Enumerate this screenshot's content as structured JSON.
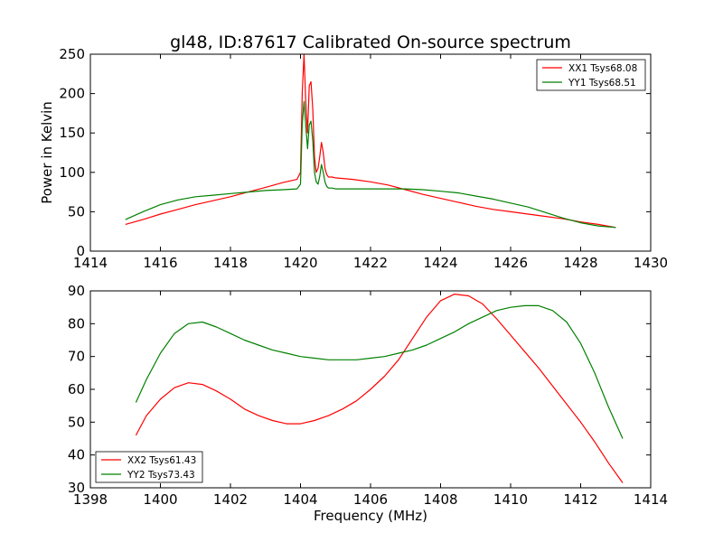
{
  "chart_data": [
    {
      "type": "line",
      "title": "gl48, ID:87617 Calibrated On-source spectrum",
      "xlabel": "",
      "ylabel": "Power in Kelvin",
      "xlim": [
        1414,
        1430
      ],
      "ylim": [
        0,
        250
      ],
      "xticks": [
        "1414",
        "1416",
        "1418",
        "1420",
        "1422",
        "1424",
        "1426",
        "1428",
        "1430"
      ],
      "yticks": [
        "0",
        "50",
        "100",
        "150",
        "200",
        "250"
      ],
      "legend_position": "top-right",
      "grid": false,
      "series": [
        {
          "name": "XX1 Tsys68.08",
          "color": "#ff0000",
          "x": [
            1415.0,
            1415.5,
            1416.0,
            1416.5,
            1417.0,
            1417.5,
            1418.0,
            1418.5,
            1419.0,
            1419.5,
            1419.9,
            1420.0,
            1420.05,
            1420.1,
            1420.15,
            1420.2,
            1420.25,
            1420.3,
            1420.35,
            1420.4,
            1420.45,
            1420.5,
            1420.55,
            1420.6,
            1420.65,
            1420.7,
            1420.75,
            1420.8,
            1420.9,
            1421.0,
            1421.5,
            1422.0,
            1422.5,
            1423.0,
            1423.5,
            1424.0,
            1424.5,
            1425.0,
            1425.5,
            1426.0,
            1426.5,
            1427.0,
            1427.5,
            1428.0,
            1428.5,
            1429.0
          ],
          "values": [
            34,
            40,
            47,
            53,
            59,
            64,
            69,
            75,
            81,
            87,
            91,
            100,
            200,
            250,
            190,
            150,
            210,
            215,
            180,
            120,
            100,
            105,
            120,
            138,
            125,
            105,
            97,
            94,
            94,
            93,
            91,
            88,
            84,
            78,
            72,
            67,
            62,
            57,
            53,
            50,
            47,
            44,
            41,
            37,
            34,
            30
          ]
        },
        {
          "name": "YY1 Tsys68.51",
          "color": "#008000",
          "x": [
            1415.0,
            1415.5,
            1416.0,
            1416.5,
            1417.0,
            1417.5,
            1418.0,
            1418.5,
            1419.0,
            1419.5,
            1419.9,
            1420.0,
            1420.05,
            1420.1,
            1420.15,
            1420.2,
            1420.25,
            1420.3,
            1420.35,
            1420.4,
            1420.45,
            1420.5,
            1420.55,
            1420.6,
            1420.65,
            1420.7,
            1420.75,
            1420.8,
            1420.9,
            1421.0,
            1421.5,
            1422.0,
            1422.5,
            1423.0,
            1423.5,
            1424.0,
            1424.5,
            1425.0,
            1425.5,
            1426.0,
            1426.5,
            1427.0,
            1427.5,
            1428.0,
            1428.5,
            1429.0
          ],
          "values": [
            40,
            50,
            59,
            65,
            69,
            71,
            73,
            75,
            77,
            78,
            79,
            85,
            160,
            190,
            160,
            130,
            160,
            165,
            140,
            100,
            88,
            85,
            95,
            110,
            100,
            88,
            82,
            80,
            80,
            79,
            79,
            79,
            79,
            79,
            78,
            76,
            74,
            70,
            66,
            61,
            56,
            49,
            42,
            36,
            32,
            30
          ]
        }
      ]
    },
    {
      "type": "line",
      "title": "",
      "xlabel": "Frequency (MHz)",
      "ylabel": "",
      "xlim": [
        1398,
        1414
      ],
      "ylim": [
        30,
        90
      ],
      "xticks": [
        "1398",
        "1400",
        "1402",
        "1404",
        "1406",
        "1408",
        "1410",
        "1412",
        "1414"
      ],
      "yticks": [
        "30",
        "40",
        "50",
        "60",
        "70",
        "80",
        "90"
      ],
      "legend_position": "bottom-left",
      "grid": false,
      "series": [
        {
          "name": "XX2 Tsys61.43",
          "color": "#ff0000",
          "x": [
            1399.3,
            1399.6,
            1400.0,
            1400.4,
            1400.8,
            1401.2,
            1401.6,
            1402.0,
            1402.4,
            1402.8,
            1403.2,
            1403.6,
            1404.0,
            1404.4,
            1404.8,
            1405.2,
            1405.6,
            1406.0,
            1406.4,
            1406.8,
            1407.2,
            1407.6,
            1408.0,
            1408.4,
            1408.8,
            1409.2,
            1409.6,
            1410.0,
            1410.4,
            1410.8,
            1411.2,
            1411.6,
            1412.0,
            1412.4,
            1412.8,
            1413.2
          ],
          "values": [
            46,
            52,
            57,
            60.5,
            62,
            61.5,
            59.5,
            57,
            54,
            52,
            50.5,
            49.5,
            49.5,
            50.5,
            52,
            54,
            56.5,
            60,
            64,
            69,
            75.5,
            82,
            87,
            89,
            88.5,
            86,
            81.5,
            76.5,
            71.5,
            66.5,
            61,
            55.5,
            50,
            44,
            37.5,
            31.5
          ]
        },
        {
          "name": "YY2 Tsys73.43",
          "color": "#008000",
          "x": [
            1399.3,
            1399.6,
            1400.0,
            1400.4,
            1400.8,
            1401.2,
            1401.6,
            1402.0,
            1402.4,
            1402.8,
            1403.2,
            1403.6,
            1404.0,
            1404.4,
            1404.8,
            1405.2,
            1405.6,
            1406.0,
            1406.4,
            1406.8,
            1407.2,
            1407.6,
            1408.0,
            1408.4,
            1408.8,
            1409.2,
            1409.6,
            1410.0,
            1410.4,
            1410.8,
            1411.2,
            1411.6,
            1412.0,
            1412.4,
            1412.8,
            1413.2
          ],
          "values": [
            56,
            63,
            71,
            77,
            80,
            80.5,
            79,
            77,
            75,
            73.5,
            72,
            71,
            70,
            69.5,
            69,
            69,
            69,
            69.5,
            70,
            71,
            72,
            73.5,
            75.5,
            77.5,
            80,
            82,
            84,
            85,
            85.5,
            85.5,
            84,
            80.5,
            74,
            65,
            54.5,
            45
          ]
        }
      ]
    }
  ]
}
